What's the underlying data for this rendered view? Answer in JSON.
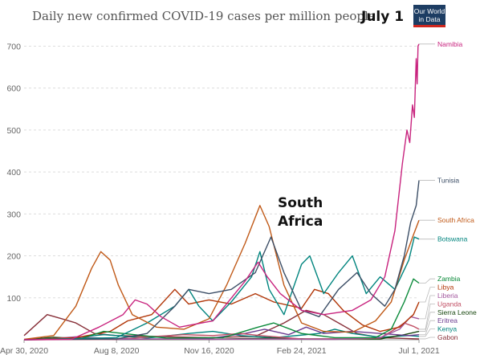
{
  "chart_data": {
    "type": "line",
    "title": "Daily new confirmed COVID-19 cases per million people",
    "ylim": [
      0,
      720
    ],
    "yticks": [
      100,
      200,
      300,
      400,
      500,
      600,
      700
    ],
    "xlim": [
      "2020-04-30",
      "2021-07-01"
    ],
    "xticks": [
      {
        "date": "2020-04-30",
        "label": "Apr 30, 2020"
      },
      {
        "date": "2020-08-08",
        "label": "Aug 8, 2020"
      },
      {
        "date": "2020-11-16",
        "label": "Nov 16, 2020"
      },
      {
        "date": "2021-02-24",
        "label": "Feb 24, 2021"
      },
      {
        "date": "2021-07-01",
        "label": "Jul 1, 2021"
      }
    ],
    "grid": "horizontal dashed",
    "legend": "right, end of lines",
    "annotations": [
      "South Africa",
      "July 1"
    ],
    "logo": [
      "Our World",
      "in Data"
    ],
    "series": [
      {
        "name": "Namibia",
        "color": "#c8237e",
        "points": [
          [
            "2020-04-30",
            0
          ],
          [
            "2020-06-20",
            1
          ],
          [
            "2020-07-20",
            30
          ],
          [
            "2020-08-15",
            60
          ],
          [
            "2020-08-28",
            95
          ],
          [
            "2020-09-10",
            85
          ],
          [
            "2020-09-25",
            55
          ],
          [
            "2020-10-15",
            30
          ],
          [
            "2020-11-20",
            45
          ],
          [
            "2020-12-25",
            140
          ],
          [
            "2021-01-08",
            185
          ],
          [
            "2021-01-18",
            150
          ],
          [
            "2021-02-01",
            110
          ],
          [
            "2021-02-24",
            70
          ],
          [
            "2021-03-20",
            60
          ],
          [
            "2021-04-20",
            70
          ],
          [
            "2021-05-10",
            95
          ],
          [
            "2021-05-25",
            150
          ],
          [
            "2021-06-05",
            260
          ],
          [
            "2021-06-13",
            420
          ],
          [
            "2021-06-18",
            500
          ],
          [
            "2021-06-21",
            470
          ],
          [
            "2021-06-24",
            560
          ],
          [
            "2021-06-26",
            530
          ],
          [
            "2021-06-28",
            670
          ],
          [
            "2021-06-29",
            610
          ],
          [
            "2021-06-30",
            700
          ],
          [
            "2021-07-01",
            705
          ]
        ]
      },
      {
        "name": "Tunisia",
        "color": "#3c4e66",
        "points": [
          [
            "2020-04-30",
            0
          ],
          [
            "2020-08-08",
            2
          ],
          [
            "2020-09-10",
            15
          ],
          [
            "2020-10-10",
            80
          ],
          [
            "2020-10-25",
            120
          ],
          [
            "2020-11-16",
            110
          ],
          [
            "2020-12-10",
            120
          ],
          [
            "2021-01-05",
            160
          ],
          [
            "2021-01-22",
            245
          ],
          [
            "2021-02-05",
            160
          ],
          [
            "2021-02-24",
            70
          ],
          [
            "2021-03-15",
            55
          ],
          [
            "2021-04-05",
            120
          ],
          [
            "2021-04-25",
            160
          ],
          [
            "2021-05-10",
            110
          ],
          [
            "2021-05-25",
            80
          ],
          [
            "2021-06-05",
            120
          ],
          [
            "2021-06-15",
            200
          ],
          [
            "2021-06-22",
            280
          ],
          [
            "2021-06-28",
            320
          ],
          [
            "2021-07-01",
            380
          ]
        ]
      },
      {
        "name": "South Africa",
        "color": "#c05917",
        "points": [
          [
            "2020-04-30",
            1
          ],
          [
            "2020-06-01",
            10
          ],
          [
            "2020-06-25",
            80
          ],
          [
            "2020-07-12",
            170
          ],
          [
            "2020-07-22",
            210
          ],
          [
            "2020-08-01",
            190
          ],
          [
            "2020-08-10",
            130
          ],
          [
            "2020-08-25",
            60
          ],
          [
            "2020-09-20",
            30
          ],
          [
            "2020-10-20",
            25
          ],
          [
            "2020-11-16",
            50
          ],
          [
            "2020-12-05",
            130
          ],
          [
            "2020-12-25",
            230
          ],
          [
            "2021-01-10",
            320
          ],
          [
            "2021-01-20",
            270
          ],
          [
            "2021-02-05",
            130
          ],
          [
            "2021-02-24",
            40
          ],
          [
            "2021-03-20",
            20
          ],
          [
            "2021-04-20",
            18
          ],
          [
            "2021-05-15",
            45
          ],
          [
            "2021-06-01",
            90
          ],
          [
            "2021-06-15",
            190
          ],
          [
            "2021-06-25",
            250
          ],
          [
            "2021-07-01",
            285
          ]
        ]
      },
      {
        "name": "Botswana",
        "color": "#00847e",
        "points": [
          [
            "2020-04-30",
            0
          ],
          [
            "2020-08-08",
            5
          ],
          [
            "2020-09-10",
            40
          ],
          [
            "2020-10-10",
            80
          ],
          [
            "2020-10-25",
            120
          ],
          [
            "2020-11-05",
            80
          ],
          [
            "2020-11-20",
            45
          ],
          [
            "2020-12-10",
            90
          ],
          [
            "2021-01-01",
            150
          ],
          [
            "2021-01-10",
            210
          ],
          [
            "2021-01-20",
            120
          ],
          [
            "2021-02-05",
            60
          ],
          [
            "2021-02-24",
            180
          ],
          [
            "2021-03-05",
            200
          ],
          [
            "2021-03-20",
            110
          ],
          [
            "2021-04-05",
            160
          ],
          [
            "2021-04-20",
            200
          ],
          [
            "2021-05-05",
            110
          ],
          [
            "2021-05-20",
            150
          ],
          [
            "2021-06-05",
            120
          ],
          [
            "2021-06-20",
            190
          ],
          [
            "2021-06-26",
            245
          ],
          [
            "2021-07-01",
            240
          ]
        ]
      },
      {
        "name": "Zambia",
        "color": "#0b8a3a",
        "points": [
          [
            "2020-04-30",
            0
          ],
          [
            "2020-07-01",
            3
          ],
          [
            "2020-07-25",
            20
          ],
          [
            "2020-08-15",
            15
          ],
          [
            "2020-10-01",
            4
          ],
          [
            "2020-12-01",
            5
          ],
          [
            "2021-01-08",
            30
          ],
          [
            "2021-01-25",
            40
          ],
          [
            "2021-02-24",
            15
          ],
          [
            "2021-04-01",
            5
          ],
          [
            "2021-05-15",
            5
          ],
          [
            "2021-06-01",
            25
          ],
          [
            "2021-06-15",
            90
          ],
          [
            "2021-06-25",
            145
          ],
          [
            "2021-07-01",
            135
          ]
        ]
      },
      {
        "name": "Libya",
        "color": "#b13507",
        "points": [
          [
            "2020-04-30",
            0
          ],
          [
            "2020-06-25",
            5
          ],
          [
            "2020-08-01",
            20
          ],
          [
            "2020-08-20",
            45
          ],
          [
            "2020-09-15",
            60
          ],
          [
            "2020-10-10",
            120
          ],
          [
            "2020-10-25",
            85
          ],
          [
            "2020-11-16",
            95
          ],
          [
            "2020-12-10",
            85
          ],
          [
            "2021-01-05",
            110
          ],
          [
            "2021-01-25",
            90
          ],
          [
            "2021-02-24",
            75
          ],
          [
            "2021-03-10",
            120
          ],
          [
            "2021-03-25",
            110
          ],
          [
            "2021-04-10",
            70
          ],
          [
            "2021-05-01",
            35
          ],
          [
            "2021-05-20",
            20
          ],
          [
            "2021-06-10",
            30
          ],
          [
            "2021-06-25",
            60
          ],
          [
            "2021-07-01",
            90
          ]
        ]
      },
      {
        "name": "Liberia",
        "color": "#a2559c",
        "points": [
          [
            "2020-04-30",
            0
          ],
          [
            "2020-06-01",
            3
          ],
          [
            "2020-06-25",
            7
          ],
          [
            "2020-08-08",
            2
          ],
          [
            "2020-11-16",
            1
          ],
          [
            "2021-01-20",
            2
          ],
          [
            "2021-04-01",
            1
          ],
          [
            "2021-05-20",
            5
          ],
          [
            "2021-06-10",
            25
          ],
          [
            "2021-06-22",
            55
          ],
          [
            "2021-07-01",
            50
          ]
        ]
      },
      {
        "name": "Uganda",
        "color": "#c15065",
        "points": [
          [
            "2020-04-30",
            0
          ],
          [
            "2020-08-08",
            1
          ],
          [
            "2020-09-20",
            8
          ],
          [
            "2020-10-20",
            12
          ],
          [
            "2020-11-20",
            10
          ],
          [
            "2020-12-20",
            15
          ],
          [
            "2021-01-10",
            10
          ],
          [
            "2021-02-24",
            2
          ],
          [
            "2021-04-20",
            2
          ],
          [
            "2021-05-20",
            4
          ],
          [
            "2021-06-05",
            25
          ],
          [
            "2021-06-15",
            40
          ],
          [
            "2021-06-25",
            32
          ],
          [
            "2021-07-01",
            25
          ]
        ]
      },
      {
        "name": "Eritrea",
        "color": "#6d3e91",
        "points": [
          [
            "2020-04-30",
            0
          ],
          [
            "2020-07-01",
            2
          ],
          [
            "2020-08-08",
            1
          ],
          [
            "2020-11-16",
            3
          ],
          [
            "2020-12-25",
            15
          ],
          [
            "2021-01-15",
            25
          ],
          [
            "2021-02-10",
            12
          ],
          [
            "2021-03-01",
            30
          ],
          [
            "2021-03-20",
            15
          ],
          [
            "2021-04-20",
            20
          ],
          [
            "2021-05-20",
            15
          ],
          [
            "2021-06-20",
            10
          ],
          [
            "2021-07-01",
            12
          ]
        ]
      },
      {
        "name": "Sierra Leone",
        "color": "#18470f",
        "points": [
          [
            "2020-04-30",
            0
          ],
          [
            "2020-06-01",
            6
          ],
          [
            "2020-06-20",
            4
          ],
          [
            "2020-08-08",
            1
          ],
          [
            "2020-11-16",
            1
          ],
          [
            "2021-01-20",
            4
          ],
          [
            "2021-03-01",
            2
          ],
          [
            "2021-05-20",
            2
          ],
          [
            "2021-06-15",
            12
          ],
          [
            "2021-07-01",
            20
          ]
        ]
      },
      {
        "name": "Kenya",
        "color": "#00847e",
        "points": [
          [
            "2020-04-30",
            0
          ],
          [
            "2020-06-15",
            3
          ],
          [
            "2020-07-25",
            12
          ],
          [
            "2020-08-08",
            10
          ],
          [
            "2020-09-10",
            4
          ],
          [
            "2020-10-25",
            15
          ],
          [
            "2020-11-20",
            20
          ],
          [
            "2020-12-20",
            10
          ],
          [
            "2021-01-25",
            5
          ],
          [
            "2021-03-15",
            15
          ],
          [
            "2021-04-01",
            25
          ],
          [
            "2021-04-20",
            15
          ],
          [
            "2021-05-20",
            6
          ],
          [
            "2021-06-20",
            10
          ],
          [
            "2021-07-01",
            8
          ]
        ]
      },
      {
        "name": "Gabon",
        "color": "#883039",
        "points": [
          [
            "2020-04-30",
            10
          ],
          [
            "2020-05-25",
            60
          ],
          [
            "2020-06-10",
            50
          ],
          [
            "2020-06-25",
            40
          ],
          [
            "2020-07-15",
            15
          ],
          [
            "2020-08-08",
            10
          ],
          [
            "2020-11-16",
            5
          ],
          [
            "2021-01-05",
            8
          ],
          [
            "2021-02-05",
            40
          ],
          [
            "2021-03-01",
            70
          ],
          [
            "2021-03-20",
            60
          ],
          [
            "2021-04-05",
            40
          ],
          [
            "2021-04-25",
            15
          ],
          [
            "2021-05-20",
            5
          ],
          [
            "2021-07-01",
            2
          ]
        ]
      }
    ]
  }
}
